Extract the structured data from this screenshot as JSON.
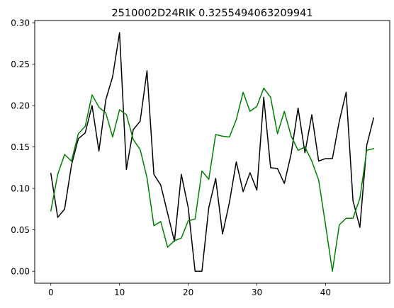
{
  "chart_data": {
    "type": "line",
    "title": "2510002D24RIK 0.3255494063209941",
    "xlabel": "",
    "ylabel": "",
    "xlim": [
      -2.35,
      49.35
    ],
    "ylim": [
      -0.0144,
      0.3026
    ],
    "xticks": [
      0,
      10,
      20,
      30,
      40
    ],
    "yticks": [
      0.0,
      0.05,
      0.1,
      0.15,
      0.2,
      0.25,
      0.3
    ],
    "ytick_labels": [
      "0.00",
      "0.05",
      "0.10",
      "0.15",
      "0.20",
      "0.25",
      "0.30"
    ],
    "grid": false,
    "legend": "none",
    "x": [
      0,
      1,
      2,
      3,
      4,
      5,
      6,
      7,
      8,
      9,
      10,
      11,
      12,
      13,
      14,
      15,
      16,
      17,
      18,
      19,
      20,
      21,
      22,
      23,
      24,
      25,
      26,
      27,
      28,
      29,
      30,
      31,
      32,
      33,
      34,
      35,
      36,
      37,
      38,
      39,
      40,
      41,
      42,
      43,
      44,
      45,
      46,
      47
    ],
    "series": [
      {
        "color": "#000000",
        "values": [
          0.118,
          0.065,
          0.075,
          0.128,
          0.16,
          0.167,
          0.2,
          0.145,
          0.207,
          0.235,
          0.288,
          0.123,
          0.171,
          0.181,
          0.242,
          0.117,
          0.104,
          0.07,
          0.036,
          0.117,
          0.077,
          0.0,
          0.0,
          0.077,
          0.112,
          0.045,
          0.083,
          0.132,
          0.096,
          0.119,
          0.098,
          0.21,
          0.125,
          0.124,
          0.106,
          0.142,
          0.197,
          0.143,
          0.189,
          0.133,
          0.136,
          0.136,
          0.181,
          0.216,
          0.085,
          0.053,
          0.152,
          0.185
        ]
      },
      {
        "color": "#008000",
        "values": [
          0.073,
          0.117,
          0.141,
          0.133,
          0.166,
          0.175,
          0.213,
          0.198,
          0.191,
          0.162,
          0.195,
          0.189,
          0.159,
          0.147,
          0.113,
          0.055,
          0.06,
          0.029,
          0.037,
          0.04,
          0.061,
          0.063,
          0.121,
          0.111,
          0.165,
          0.163,
          0.162,
          0.183,
          0.216,
          0.193,
          0.199,
          0.221,
          0.21,
          0.166,
          0.193,
          0.163,
          0.146,
          0.15,
          0.133,
          0.11,
          0.056,
          0.0,
          0.056,
          0.064,
          0.064,
          0.088,
          0.146,
          0.148
        ]
      }
    ]
  }
}
